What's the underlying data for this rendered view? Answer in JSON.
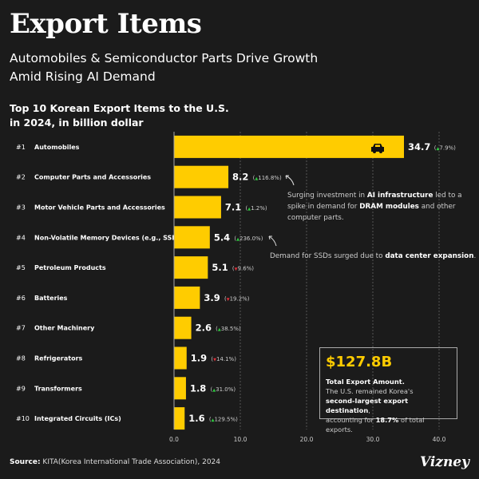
{
  "title": "Export Items",
  "subtitle": "Automobiles & Semiconductor Parts Drive Growth Amid Rising AI Demand",
  "colors": {
    "bar": "#ffcc00",
    "up": "#2ecc40",
    "down": "#e0303a",
    "background": "#1b1b1b"
  },
  "chart_data": {
    "type": "bar",
    "orientation": "horizontal",
    "title": "Top 10 Korean Export Items to the U.S. in 2024, in billion dollar",
    "ranks": [
      "#1",
      "#2",
      "#3",
      "#4",
      "#5",
      "#6",
      "#7",
      "#8",
      "#9",
      "#10"
    ],
    "categories": [
      "Automobiles",
      "Computer Parts and Accessories",
      "Motor Vehicle Parts and Accessories",
      "Non-Volatile Memory Devices (e.g., SSDs)",
      "Petroleum Products",
      "Batteries",
      "Other Machinery",
      "Refrigerators",
      "Transformers",
      "Integrated Circuits (ICs)"
    ],
    "values": [
      34.7,
      8.2,
      7.1,
      5.4,
      5.1,
      3.9,
      2.6,
      1.9,
      1.8,
      1.6
    ],
    "value_labels": [
      "34.7",
      "8.2",
      "7.1",
      "5.4",
      "5.1",
      "3.9",
      "2.6",
      "1.9",
      "1.8",
      "1.6"
    ],
    "change_pct": [
      7.9,
      116.8,
      1.2,
      236.0,
      -9.6,
      -19.2,
      38.5,
      -14.1,
      31.0,
      129.5
    ],
    "change_labels": [
      "7.9%",
      "116.8%",
      "1.2%",
      "236.0%",
      "9.6%",
      "19.2%",
      "38.5%",
      "14.1%",
      "31.0%",
      "129.5%"
    ],
    "xlim": [
      0,
      40
    ],
    "xticks": [
      "0.0",
      "10.0",
      "20.0",
      "30.0",
      "40.0"
    ],
    "grid": "vertical dashed",
    "icon": "car-icon"
  },
  "annotations": {
    "ai": {
      "pre": "Surging investment in ",
      "b1": "AI infrastructure",
      "mid": " led to a spike in demand for ",
      "b2": "DRAM modules",
      "post": " and other computer parts."
    },
    "ssd": {
      "pre": "Demand for SSDs surged due to ",
      "b1": "data center expansion",
      "post": "."
    }
  },
  "summary": {
    "amount": "$127.8B",
    "heading": "Total Export Amount",
    "line1": "The U.S. remained Korea's",
    "b1": "second-largest export destination",
    "line2a": "accounting for ",
    "b2": "18.7%",
    "line2b": " of total exports."
  },
  "source": {
    "label": "Source:",
    "text": " KITA(Korea International Trade Association), 2024"
  },
  "logo": "Vizney"
}
